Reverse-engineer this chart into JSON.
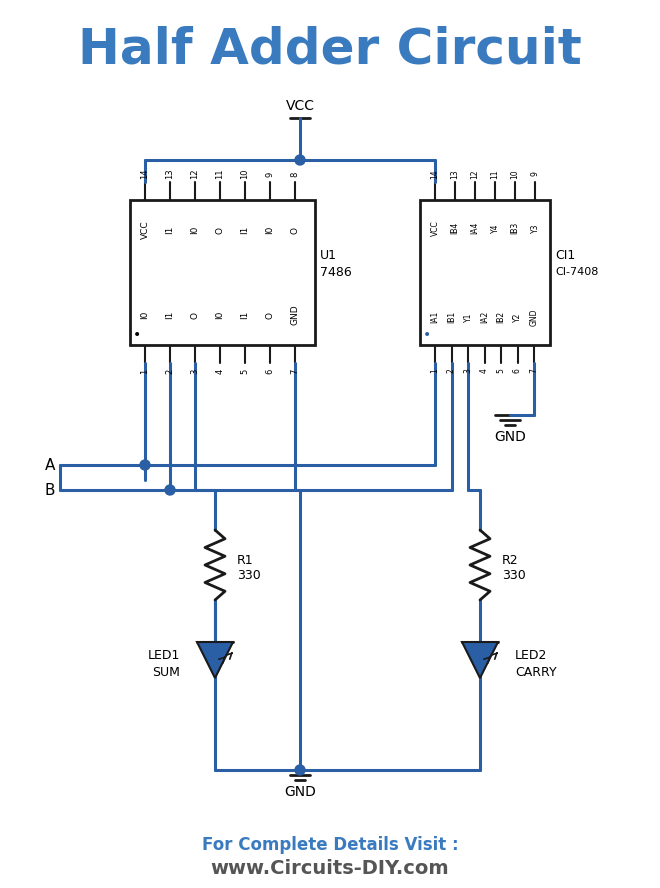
{
  "title": "Half Adder Circuit",
  "title_color": "#3a7abf",
  "title_fontsize": 36,
  "wire_color": "#2a5fa5",
  "wire_lw": 2.2,
  "ic_border_color": "#1a1a1a",
  "bg_color": "#ffffff",
  "footer_text1": "For Complete Details Visit :",
  "footer_text2": "www.Circuits-DIY.com",
  "footer_color1": "#3a7abf",
  "footer_color2": "#555555",
  "vcc_label": "VCC",
  "gnd_label": "GND",
  "u1_label1": "U1",
  "u1_label2": "7486",
  "ci1_label1": "CI1",
  "ci1_label2": "CI-7408",
  "r1_label1": "R1",
  "r1_label2": "330",
  "r2_label1": "R2",
  "r2_label2": "330",
  "led1_label1": "LED1",
  "led1_label2": "SUM",
  "led2_label1": "LED2",
  "led2_label2": "CARRY",
  "A_label": "A",
  "B_label": "B"
}
